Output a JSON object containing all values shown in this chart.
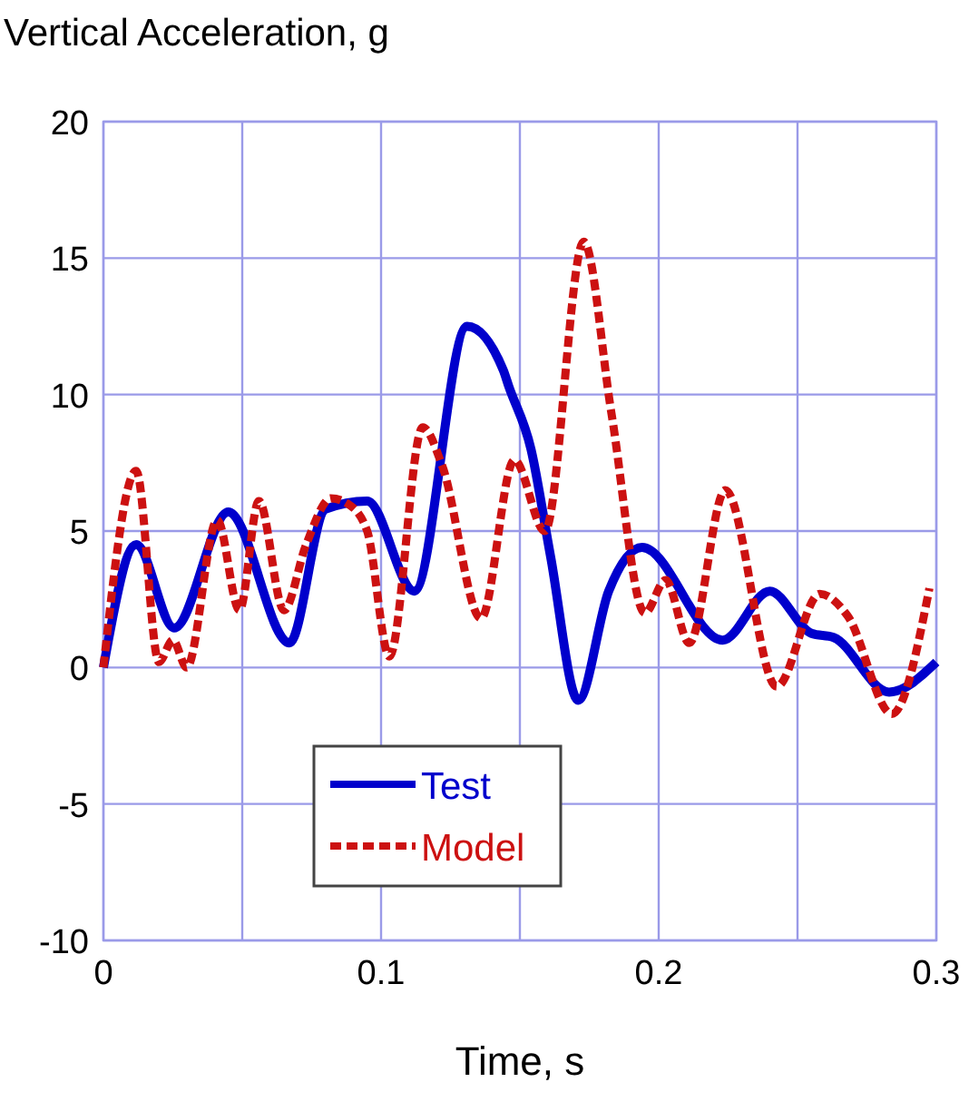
{
  "chart_data": {
    "type": "line",
    "title": "Vertical Acceleration, g",
    "xlabel": "Time, s",
    "xlim": [
      0,
      0.3
    ],
    "xticks": [
      0,
      0.1,
      0.2,
      0.3
    ],
    "ylim": [
      -10,
      20
    ],
    "yticks": [
      -10,
      -5,
      0,
      5,
      10,
      15,
      20
    ],
    "grid": true,
    "legend": "bottom left",
    "series": [
      {
        "name": "Test",
        "color": "#0000cc",
        "line_style": "solid",
        "x": [
          0,
          0.0118,
          0.0255,
          0.045,
          0.067,
          0.08,
          0.095,
          0.112,
          0.131,
          0.144,
          0.146,
          0.154,
          0.161,
          0.171,
          0.182,
          0.194,
          0.223,
          0.24,
          0.255,
          0.263,
          0.283,
          0.3
        ],
        "values": [
          0,
          4.5,
          1.45,
          5.7,
          0.9,
          5.8,
          6.1,
          2.8,
          12.5,
          10.9,
          10.3,
          8.0,
          4.1,
          -1.2,
          2.8,
          4.4,
          1.0,
          2.8,
          1.25,
          1.1,
          -0.9,
          0.2
        ]
      },
      {
        "name": "Model",
        "color": "#cc1111",
        "line_style": "dashed",
        "x": [
          0,
          0.0118,
          0.02,
          0.025,
          0.03,
          0.041,
          0.049,
          0.056,
          0.065,
          0.073,
          0.082,
          0.088,
          0.095,
          0.103,
          0.115,
          0.122,
          0.136,
          0.148,
          0.159,
          0.173,
          0.183,
          0.195,
          0.2025,
          0.211,
          0.224,
          0.2425,
          0.258,
          0.268,
          0.284,
          0.2975
        ],
        "values": [
          0,
          7.2,
          0.2,
          1.0,
          0,
          5.4,
          2.1,
          6.1,
          2.1,
          4.5,
          6.2,
          6.0,
          5.0,
          0.4,
          8.8,
          7.4,
          1.8,
          7.6,
          5.0,
          15.6,
          9.3,
          2.0,
          3.2,
          0.9,
          6.5,
          -0.7,
          2.7,
          1.9,
          -1.7,
          2.9
        ]
      }
    ]
  }
}
